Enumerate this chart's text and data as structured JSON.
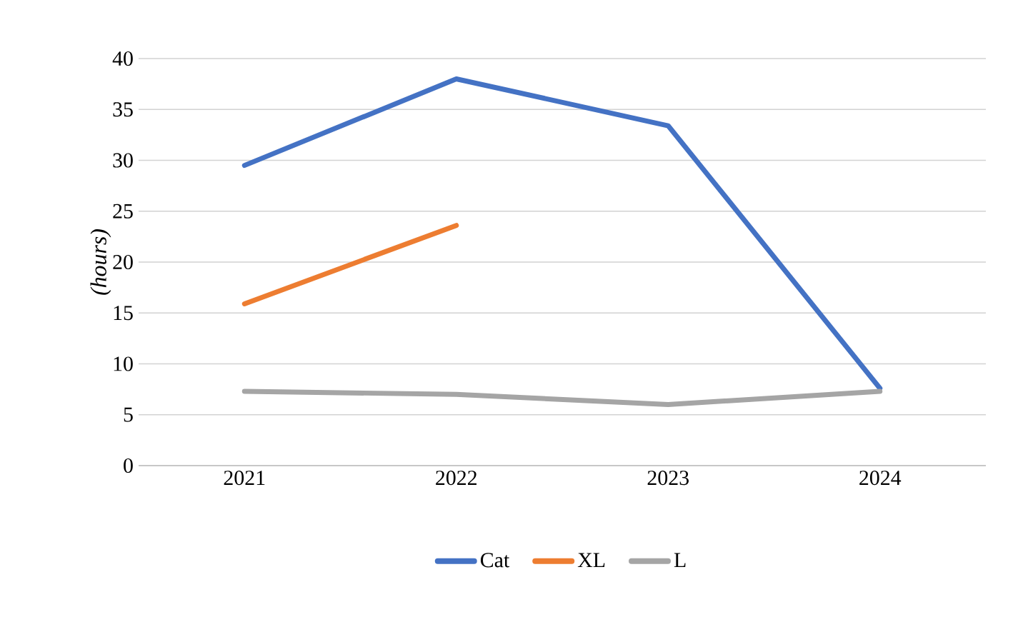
{
  "chart_data": {
    "type": "line",
    "ylabel": "*(hours)*",
    "categories": [
      "2021",
      "2022",
      "2023",
      "2024"
    ],
    "series": [
      {
        "name": "Cat",
        "color": "#4472c4",
        "values": [
          29.5,
          38.0,
          33.4,
          7.6
        ]
      },
      {
        "name": "XL",
        "color": "#ed7d31",
        "values": [
          15.9,
          23.6,
          null,
          null
        ]
      },
      {
        "name": "L",
        "color": "#a5a5a5",
        "values": [
          7.3,
          7.0,
          6.0,
          7.3
        ]
      }
    ],
    "ylim": [
      0,
      40
    ],
    "yticks": [
      0,
      5,
      10,
      15,
      20,
      25,
      30,
      35,
      40
    ],
    "grid": "y",
    "legend": "bottom",
    "marker": "none",
    "line_style": "solid"
  }
}
